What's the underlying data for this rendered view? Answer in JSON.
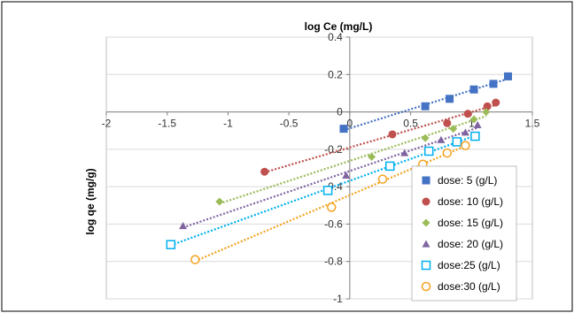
{
  "chart_data": {
    "type": "scatter",
    "xlabel": "log Ce (mg/L)",
    "ylabel": "log qe (mg/g)",
    "xlim": [
      -2,
      1.5
    ],
    "ylim": [
      -1,
      0.4
    ],
    "x_ticks": [
      "-2",
      "-1.5",
      "-1",
      "-0.5",
      "0",
      "0.5",
      "1",
      "1.5"
    ],
    "y_ticks": [
      "0.4",
      "0.2",
      "0",
      "-0.2",
      "-0.4",
      "-0.6",
      "-0.8",
      "-1"
    ],
    "grid": "horizontal",
    "trendlines": "linear, dotted",
    "legend_position": "bottom-right",
    "series": [
      {
        "name": "dose: 5 (g/L)",
        "marker": "square-filled",
        "color": "#4472c4",
        "points": [
          [
            -0.05,
            -0.09
          ],
          [
            0.62,
            0.03
          ],
          [
            0.82,
            0.07
          ],
          [
            1.02,
            0.12
          ],
          [
            1.18,
            0.15
          ],
          [
            1.3,
            0.19
          ]
        ]
      },
      {
        "name": "dose: 10 (g/L)",
        "marker": "circle-filled",
        "color": "#c0504d",
        "points": [
          [
            -0.7,
            -0.32
          ],
          [
            0.35,
            -0.12
          ],
          [
            0.8,
            -0.06
          ],
          [
            0.97,
            -0.01
          ],
          [
            1.13,
            0.03
          ],
          [
            1.2,
            0.05
          ]
        ]
      },
      {
        "name": "dose: 15 (g/L)",
        "marker": "diamond-filled",
        "color": "#9bbb59",
        "points": [
          [
            -1.07,
            -0.48
          ],
          [
            0.18,
            -0.24
          ],
          [
            0.62,
            -0.14
          ],
          [
            0.85,
            -0.09
          ],
          [
            1.02,
            -0.04
          ],
          [
            1.12,
            0.0
          ]
        ]
      },
      {
        "name": "dose: 20 (g/L)",
        "marker": "triangle-filled",
        "color": "#8064a2",
        "points": [
          [
            -1.37,
            -0.61
          ],
          [
            -0.03,
            -0.34
          ],
          [
            0.45,
            -0.22
          ],
          [
            0.75,
            -0.15
          ],
          [
            0.95,
            -0.11
          ],
          [
            1.05,
            -0.07
          ]
        ]
      },
      {
        "name": "dose:25 (g/L)",
        "marker": "square-open",
        "color": "#00b0f0",
        "points": [
          [
            -1.47,
            -0.71
          ],
          [
            -0.18,
            -0.42
          ],
          [
            0.33,
            -0.29
          ],
          [
            0.65,
            -0.21
          ],
          [
            0.88,
            -0.16
          ],
          [
            1.03,
            -0.13
          ]
        ]
      },
      {
        "name": "dose:30 (g/L)",
        "marker": "circle-open",
        "color": "#f4a21e",
        "points": [
          [
            -1.27,
            -0.79
          ],
          [
            -0.15,
            -0.51
          ],
          [
            0.27,
            -0.36
          ],
          [
            0.6,
            -0.28
          ],
          [
            0.8,
            -0.22
          ],
          [
            0.95,
            -0.18
          ]
        ]
      }
    ]
  }
}
